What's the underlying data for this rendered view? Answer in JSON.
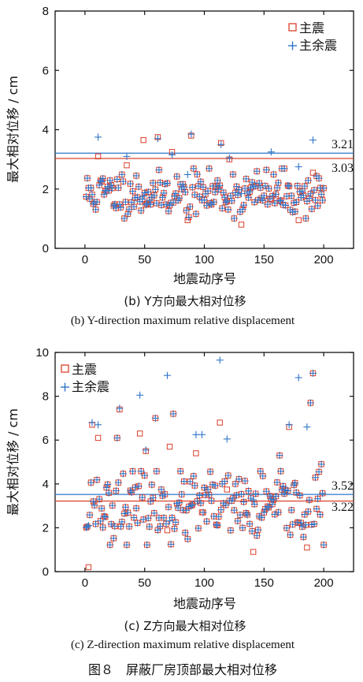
{
  "colors": {
    "mainshock": "#d9412c",
    "aftershock": "#2f75c9",
    "axis": "#111111"
  },
  "figure_caption": "图８　屏蔽厂房顶部最大相对位移",
  "chart_data": [
    {
      "type": "scatter",
      "caption_cn": "(b) Y方向最大相对位移",
      "caption_en": "(b) Y-direction maximum relative displacement",
      "xlabel": "地震动序号",
      "ylabel": "最大相对位移 / cm",
      "xlim": [
        -25,
        225
      ],
      "ylim": [
        0,
        8
      ],
      "xticks": [
        0,
        50,
        100,
        150,
        200
      ],
      "yticks": [
        0,
        2,
        4,
        6,
        8
      ],
      "legend": {
        "placement": "top-right",
        "entries": [
          "主震",
          "主余震"
        ]
      },
      "grid": false,
      "reference_lines": [
        {
          "value": 3.21,
          "label": "3.21",
          "series": "主余震"
        },
        {
          "value": 3.03,
          "label": "3.03",
          "series": "主震"
        }
      ],
      "series": [
        {
          "name": "主震",
          "marker": "square",
          "seed": 11,
          "mean": 1.85,
          "spread": 0.4,
          "outliers": [
            [
              10,
              3.1
            ],
            [
              34,
              2.8
            ],
            [
              48,
              3.65
            ],
            [
              60,
              3.75
            ],
            [
              72,
              3.25
            ],
            [
              88,
              3.8
            ],
            [
              113,
              3.55
            ],
            [
              120,
              3.0
            ],
            [
              130,
              0.8
            ],
            [
              178,
              0.95
            ],
            [
              190,
              2.55
            ],
            [
              85,
              0.95
            ]
          ]
        },
        {
          "name": "主余震",
          "marker": "plus",
          "seed": 11,
          "mean": 1.85,
          "spread": 0.4,
          "outliers": [
            [
              10,
              3.75
            ],
            [
              34,
              3.1
            ],
            [
              60,
              3.7
            ],
            [
              72,
              3.15
            ],
            [
              88,
              3.85
            ],
            [
              113,
              3.5
            ],
            [
              120,
              3.05
            ],
            [
              155,
              3.25
            ],
            [
              178,
              2.75
            ],
            [
              190,
              3.65
            ]
          ]
        }
      ]
    },
    {
      "type": "scatter",
      "caption_cn": "(c) Z方向最大相对位移",
      "caption_en": "(c) Z-direction maximum relative displacement",
      "xlabel": "地震动序号",
      "ylabel": "最大相对位移 / cm",
      "xlim": [
        -25,
        225
      ],
      "ylim": [
        0,
        10
      ],
      "xticks": [
        0,
        50,
        100,
        150,
        200
      ],
      "yticks": [
        0,
        2,
        4,
        6,
        8,
        10
      ],
      "legend": {
        "placement": "top-left",
        "entries": [
          "主震",
          "主余震"
        ]
      },
      "grid": false,
      "reference_lines": [
        {
          "value": 3.52,
          "label": "3.52",
          "series": "主余震"
        },
        {
          "value": 3.22,
          "label": "3.22",
          "series": "主震"
        }
      ],
      "series": [
        {
          "name": "主震",
          "marker": "square",
          "seed": 23,
          "mean": 2.9,
          "spread": 0.8,
          "outliers": [
            [
              2,
              0.2
            ],
            [
              5,
              6.7
            ],
            [
              10,
              6.1
            ],
            [
              26,
              6.1
            ],
            [
              28,
              7.4
            ],
            [
              45,
              6.3
            ],
            [
              58,
              7.0
            ],
            [
              70,
              5.7
            ],
            [
              73,
              7.2
            ],
            [
              92,
              5.4
            ],
            [
              112,
              6.8
            ],
            [
              125,
              4.0
            ],
            [
              140,
              0.9
            ],
            [
              162,
              5.3
            ],
            [
              170,
              6.6
            ],
            [
              185,
              1.1
            ],
            [
              188,
              7.7
            ],
            [
              190,
              9.05
            ],
            [
              197,
              4.9
            ],
            [
              50,
              5.5
            ]
          ]
        },
        {
          "name": "主余震",
          "marker": "plus",
          "seed": 23,
          "mean": 2.9,
          "spread": 0.8,
          "outliers": [
            [
              2,
              2.1
            ],
            [
              5,
              6.8
            ],
            [
              10,
              6.7
            ],
            [
              26,
              6.1
            ],
            [
              28,
              7.45
            ],
            [
              45,
              8.05
            ],
            [
              58,
              7.0
            ],
            [
              68,
              8.95
            ],
            [
              73,
              7.2
            ],
            [
              92,
              6.25
            ],
            [
              97,
              6.25
            ],
            [
              112,
              9.65
            ],
            [
              118,
              6.05
            ],
            [
              125,
              4.0
            ],
            [
              162,
              5.3
            ],
            [
              170,
              6.7
            ],
            [
              178,
              8.85
            ],
            [
              185,
              6.6
            ],
            [
              188,
              7.7
            ],
            [
              190,
              9.05
            ],
            [
              197,
              4.9
            ],
            [
              50,
              5.55
            ]
          ]
        }
      ]
    }
  ]
}
